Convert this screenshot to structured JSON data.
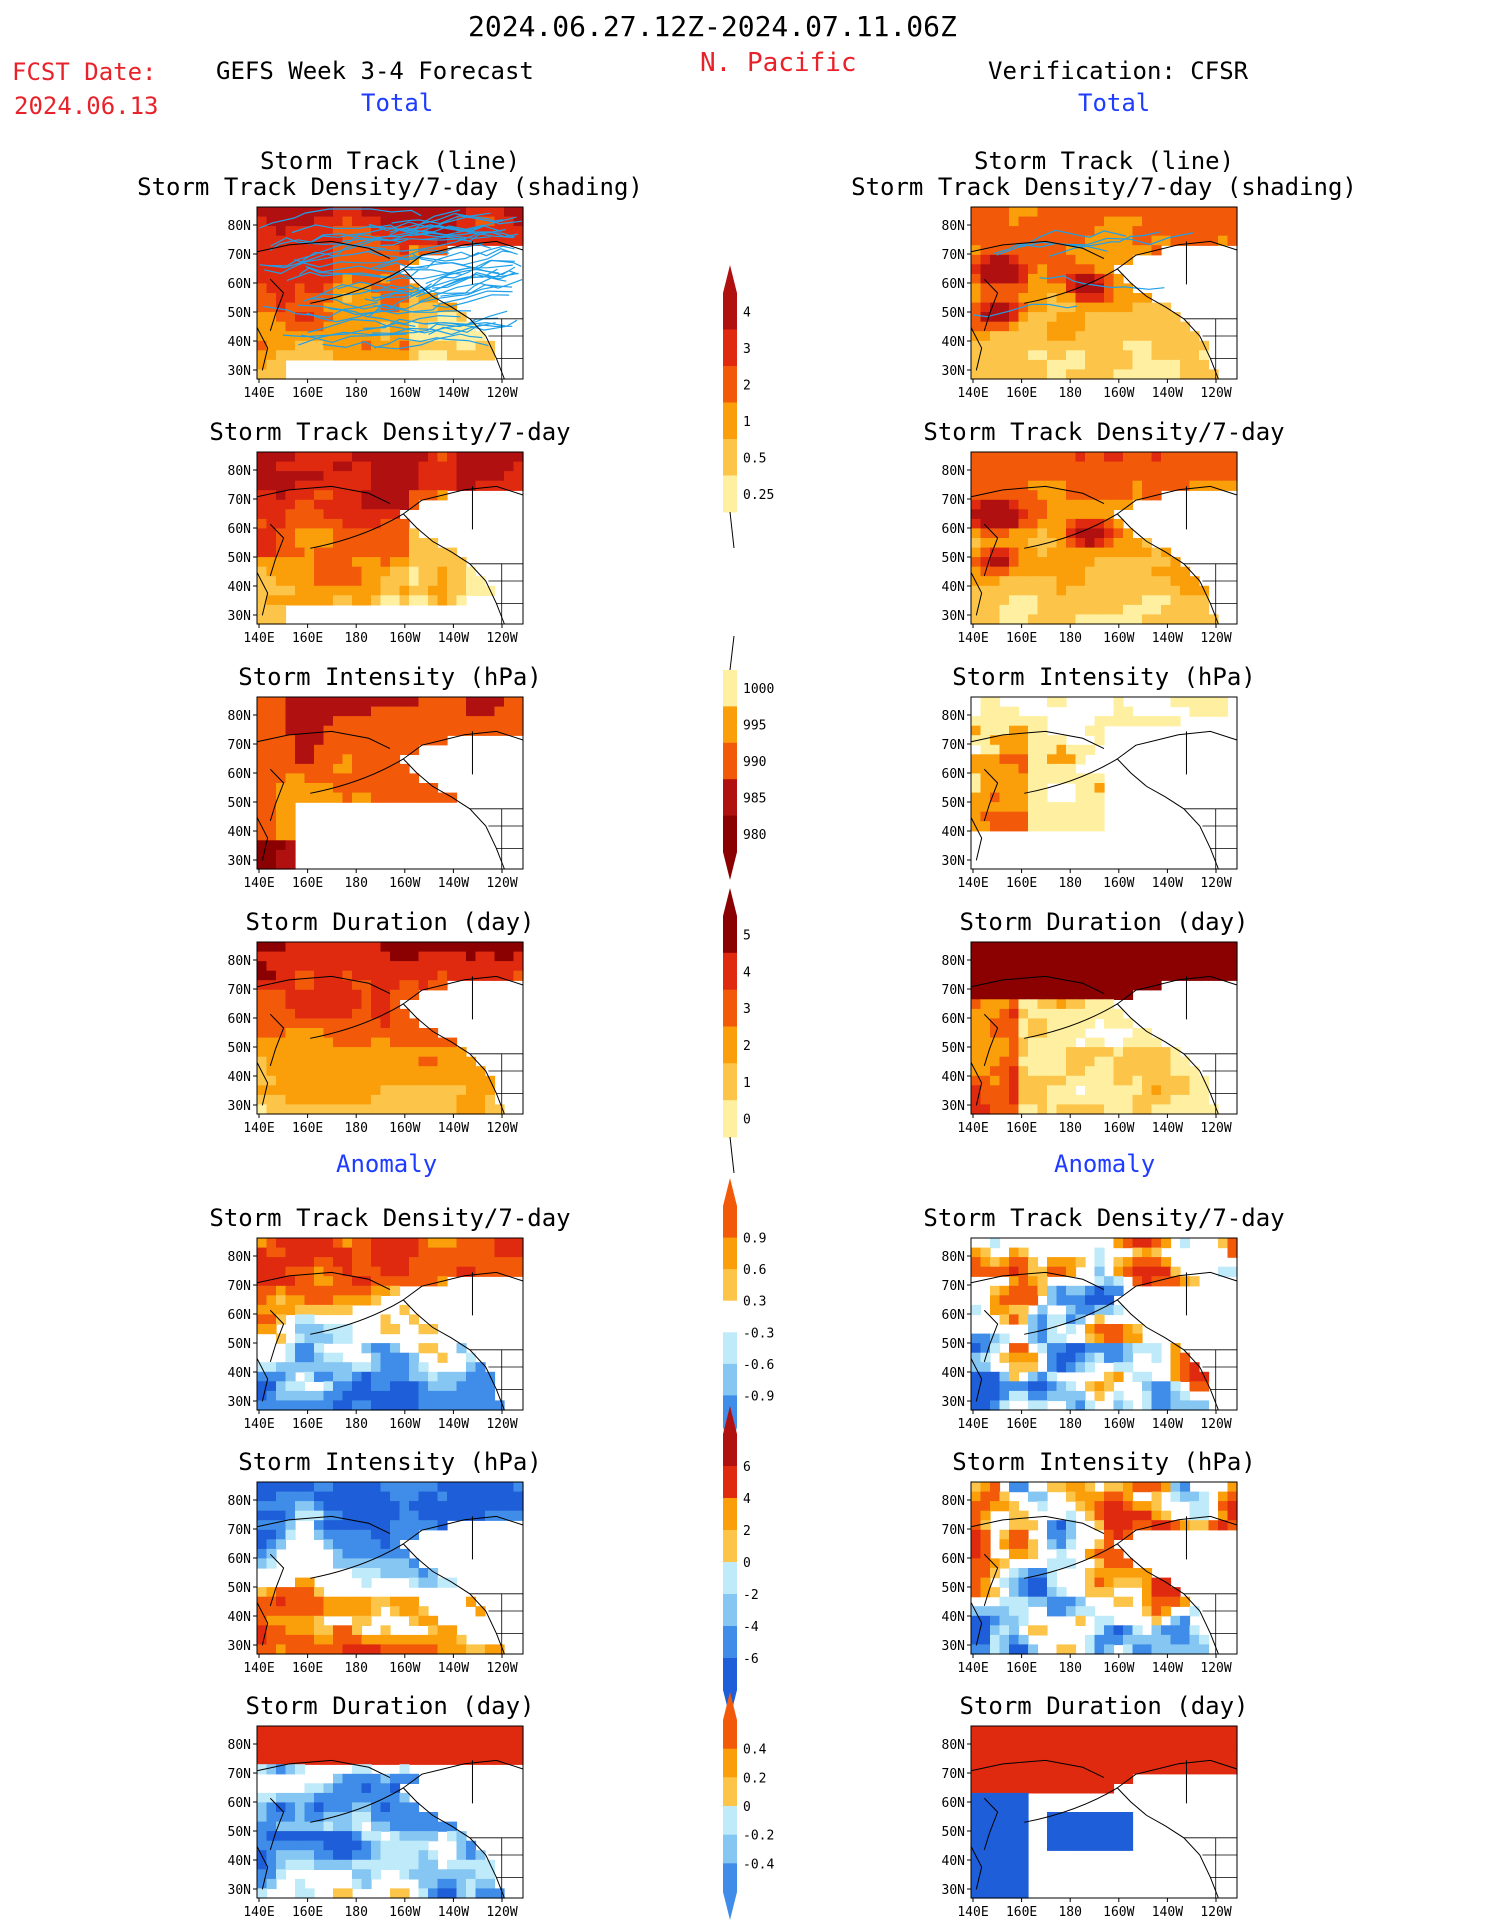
{
  "header": {
    "period": "2024.06.27.12Z-2024.07.11.06Z",
    "fcst_date_label": "FCST Date:",
    "fcst_date_value": "2024.06.13",
    "region": "N. Pacific",
    "left_title": "GEFS Week 3-4 Forecast",
    "right_title": "Verification: CFSR",
    "left_total": "Total",
    "right_total": "Total",
    "left_anomaly": "Anomaly",
    "right_anomaly": "Anomaly"
  },
  "colors": {
    "brown": "#8b0000",
    "darkred": "#b01010",
    "red": "#e02a10",
    "orange_red": "#f25a0a",
    "orange": "#fa9e0a",
    "light_orange": "#fcc54a",
    "yellow": "#fef0a0",
    "pale_blue": "#bfeafa",
    "light_blue": "#86c6f3",
    "mid_blue": "#3f8de8",
    "dark_blue": "#1e5ed8",
    "track_line": "#1fa0e8"
  },
  "chart_data": {
    "type": "heatmap",
    "map_axes": {
      "x_ticks": [
        "140E",
        "160E",
        "180",
        "160W",
        "140W",
        "120W"
      ],
      "y_ticks": [
        "80N",
        "70N",
        "60N",
        "50N",
        "40N",
        "30N"
      ]
    },
    "rows": [
      {
        "title_line1": "Storm Track (line)",
        "title_line2": "Storm Track Density/7-day (shading)"
      },
      {
        "title_line1": "Storm Track Density/7-day"
      },
      {
        "title_line1": "Storm Intensity (hPa)"
      },
      {
        "title_line1": "Storm Duration (day)"
      },
      {
        "title_line1": "Storm Track Density/7-day"
      },
      {
        "title_line1": "Storm Intensity (hPa)"
      },
      {
        "title_line1": "Storm Duration (day)"
      }
    ],
    "colorbars": [
      {
        "name": "density",
        "labels": [
          "4",
          "3",
          "2",
          "1",
          "0.5",
          "0.25"
        ]
      },
      {
        "name": "intensity",
        "labels": [
          "1000",
          "995",
          "990",
          "985",
          "980"
        ]
      },
      {
        "name": "duration",
        "labels": [
          "5",
          "4",
          "3",
          "2",
          "1",
          "0"
        ]
      },
      {
        "name": "density_anomaly",
        "labels": [
          "0.9",
          "0.6",
          "0.3",
          "-0.3",
          "-0.6",
          "-0.9"
        ]
      },
      {
        "name": "intensity_anomaly",
        "labels": [
          "6",
          "4",
          "2",
          "0",
          "-2",
          "-4",
          "-6"
        ]
      },
      {
        "name": "duration_anomaly",
        "labels": [
          "0.4",
          "0.2",
          "0",
          "-0.2",
          "-0.4"
        ]
      }
    ]
  }
}
